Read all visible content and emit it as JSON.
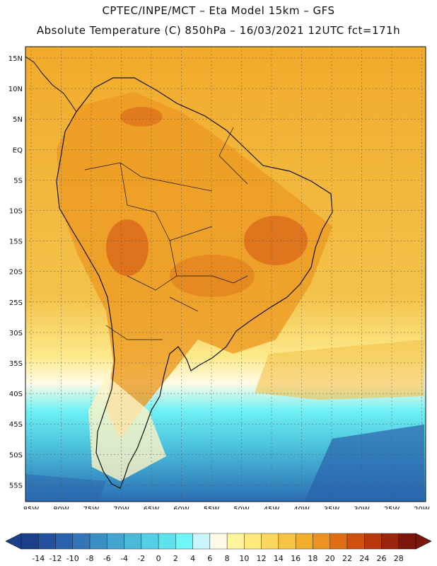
{
  "header": {
    "line1": "CPTEC/INPE/MCT –  Eta Model 15km – GFS",
    "line2": "Absolute Temperature (C) 850hPa – 16/03/2021 12UTC fct=171h"
  },
  "map": {
    "lat_labels": [
      "15N",
      "10N",
      "5N",
      "EQ",
      "5S",
      "10S",
      "15S",
      "20S",
      "25S",
      "30S",
      "35S",
      "40S",
      "45S",
      "50S",
      "55S"
    ],
    "lon_labels": [
      "85W",
      "80W",
      "75W",
      "70W",
      "65W",
      "60W",
      "55W",
      "50W",
      "45W",
      "40W",
      "35W",
      "30W",
      "25W",
      "20W"
    ]
  },
  "colorbar": {
    "ticks": [
      "-14",
      "-12",
      "-10",
      "-8",
      "-6",
      "-4",
      "-2",
      "0",
      "2",
      "4",
      "6",
      "8",
      "10",
      "12",
      "14",
      "16",
      "18",
      "20",
      "22",
      "24",
      "26",
      "28"
    ],
    "colors": [
      "#1c3f8c",
      "#24519e",
      "#2a63ad",
      "#3276b8",
      "#3a8ec4",
      "#43a5d0",
      "#4bbad9",
      "#54cfe3",
      "#5ce3ee",
      "#6ff6f8",
      "#c9f6fb",
      "#fff9e6",
      "#fff59c",
      "#ffe97a",
      "#fbd75e",
      "#f6c441",
      "#f0ae2a",
      "#eb9220",
      "#e06c13",
      "#d0500f",
      "#b8380c",
      "#9a240c",
      "#7a160c"
    ]
  }
}
